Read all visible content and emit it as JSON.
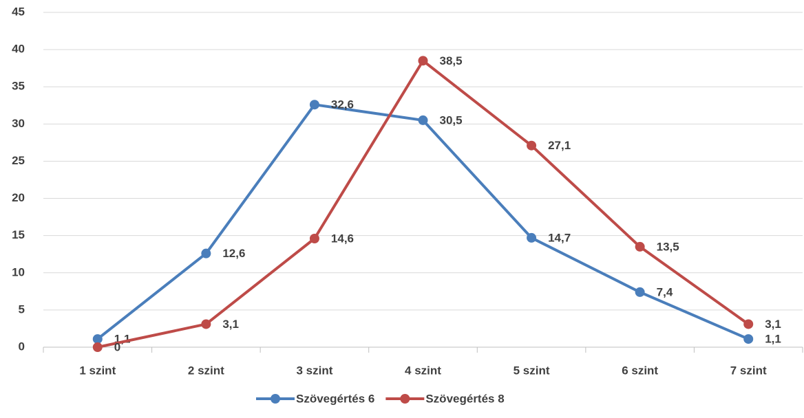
{
  "chart_data": {
    "type": "line",
    "categories": [
      "1 szint",
      "2 szint",
      "3 szint",
      "4 szint",
      "5 szint",
      "6 szint",
      "7 szint"
    ],
    "series": [
      {
        "name": "Szövegértés 6",
        "color": "#4a7ebb",
        "values": [
          1.1,
          12.6,
          32.6,
          30.5,
          14.7,
          7.4,
          1.1
        ],
        "value_labels": [
          "1,1",
          "12,6",
          "32,6",
          "30,5",
          "14,7",
          "7,4",
          "1,1"
        ]
      },
      {
        "name": "Szövegértés 8",
        "color": "#be4b48",
        "values": [
          0,
          3.1,
          14.6,
          38.5,
          27.1,
          13.5,
          3.1
        ],
        "value_labels": [
          "0",
          "3,1",
          "14,6",
          "38,5",
          "27,1",
          "13,5",
          "3,1"
        ]
      }
    ],
    "ylim": [
      0,
      45
    ],
    "yticks": [
      0,
      5,
      10,
      15,
      20,
      25,
      30,
      35,
      40,
      45
    ],
    "grid": true,
    "legend": "bottom"
  }
}
